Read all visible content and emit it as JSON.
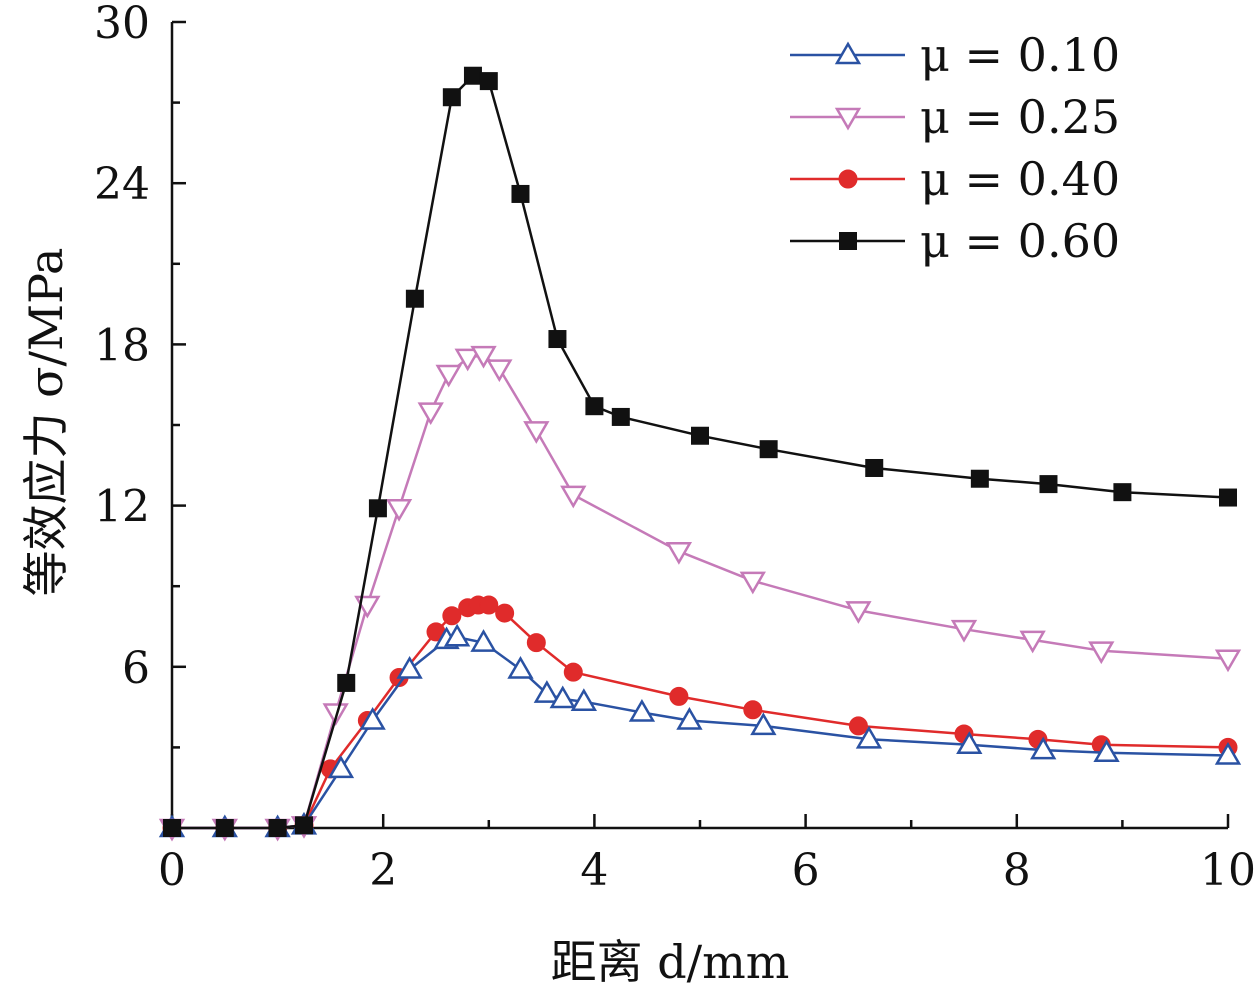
{
  "chart_data": {
    "type": "line",
    "xlabel": "距离 d/mm",
    "ylabel": "等效应力 σ/MPa",
    "xlim": [
      0,
      10
    ],
    "ylim": [
      0,
      30
    ],
    "x_ticks": [
      0,
      2,
      4,
      6,
      8,
      10
    ],
    "y_ticks": [
      6,
      12,
      18,
      24,
      30
    ],
    "grid": false,
    "legend_position": "top-right",
    "series": [
      {
        "name": "μ = 0.10",
        "color": "#2a52a3",
        "marker": "triangle-up",
        "points": [
          [
            0.0,
            0.0
          ],
          [
            0.5,
            0.0
          ],
          [
            1.0,
            0.0
          ],
          [
            1.25,
            0.1
          ],
          [
            1.6,
            2.2
          ],
          [
            1.9,
            4.0
          ],
          [
            2.25,
            5.9
          ],
          [
            2.6,
            7.0
          ],
          [
            2.7,
            7.1
          ],
          [
            2.95,
            6.9
          ],
          [
            3.3,
            5.9
          ],
          [
            3.55,
            5.0
          ],
          [
            3.7,
            4.8
          ],
          [
            3.9,
            4.7
          ],
          [
            4.45,
            4.3
          ],
          [
            4.9,
            4.0
          ],
          [
            5.6,
            3.8
          ],
          [
            6.6,
            3.3
          ],
          [
            7.55,
            3.1
          ],
          [
            8.25,
            2.9
          ],
          [
            8.85,
            2.8
          ],
          [
            10.0,
            2.7
          ]
        ]
      },
      {
        "name": "μ = 0.25",
        "color": "#c57ab8",
        "marker": "triangle-down",
        "points": [
          [
            0.0,
            0.0
          ],
          [
            0.5,
            0.0
          ],
          [
            1.0,
            0.0
          ],
          [
            1.25,
            0.1
          ],
          [
            1.55,
            4.3
          ],
          [
            1.85,
            8.3
          ],
          [
            2.15,
            11.9
          ],
          [
            2.45,
            15.5
          ],
          [
            2.62,
            16.9
          ],
          [
            2.8,
            17.5
          ],
          [
            2.95,
            17.6
          ],
          [
            3.1,
            17.1
          ],
          [
            3.45,
            14.8
          ],
          [
            3.8,
            12.4
          ],
          [
            4.8,
            10.3
          ],
          [
            5.5,
            9.2
          ],
          [
            6.5,
            8.1
          ],
          [
            7.5,
            7.4
          ],
          [
            8.15,
            7.0
          ],
          [
            8.8,
            6.6
          ],
          [
            10.0,
            6.3
          ]
        ]
      },
      {
        "name": "μ = 0.40",
        "color": "#e02b2b",
        "marker": "circle",
        "points": [
          [
            0.0,
            0.0
          ],
          [
            0.5,
            0.0
          ],
          [
            1.0,
            0.0
          ],
          [
            1.25,
            0.1
          ],
          [
            1.5,
            2.2
          ],
          [
            1.85,
            4.0
          ],
          [
            2.15,
            5.6
          ],
          [
            2.5,
            7.3
          ],
          [
            2.65,
            7.9
          ],
          [
            2.8,
            8.2
          ],
          [
            2.9,
            8.3
          ],
          [
            3.0,
            8.3
          ],
          [
            3.15,
            8.0
          ],
          [
            3.45,
            6.9
          ],
          [
            3.8,
            5.8
          ],
          [
            4.8,
            4.9
          ],
          [
            5.5,
            4.4
          ],
          [
            6.5,
            3.8
          ],
          [
            7.5,
            3.5
          ],
          [
            8.2,
            3.3
          ],
          [
            8.8,
            3.1
          ],
          [
            10.0,
            3.0
          ]
        ]
      },
      {
        "name": "μ = 0.60",
        "color": "#111111",
        "marker": "square",
        "points": [
          [
            0.0,
            0.0
          ],
          [
            0.5,
            0.0
          ],
          [
            1.0,
            0.0
          ],
          [
            1.25,
            0.1
          ],
          [
            1.65,
            5.4
          ],
          [
            1.95,
            11.9
          ],
          [
            2.3,
            19.7
          ],
          [
            2.65,
            27.2
          ],
          [
            2.85,
            28.0
          ],
          [
            3.0,
            27.8
          ],
          [
            3.3,
            23.6
          ],
          [
            3.65,
            18.2
          ],
          [
            4.0,
            15.7
          ],
          [
            4.25,
            15.3
          ],
          [
            5.0,
            14.6
          ],
          [
            5.65,
            14.1
          ],
          [
            6.65,
            13.4
          ],
          [
            7.65,
            13.0
          ],
          [
            8.3,
            12.8
          ],
          [
            9.0,
            12.5
          ],
          [
            10.0,
            12.3
          ]
        ]
      }
    ]
  }
}
